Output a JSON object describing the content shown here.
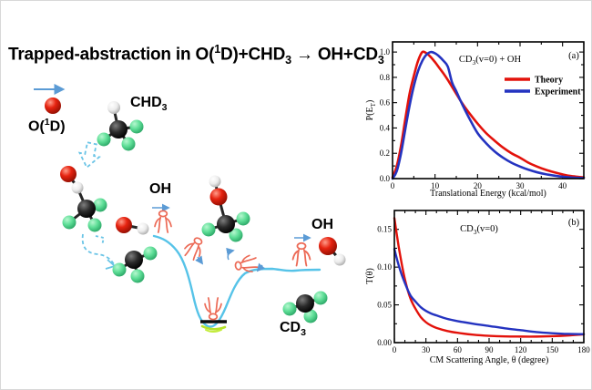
{
  "page": {
    "title_segments": [
      {
        "t": "Trapped-abstraction in O("
      },
      {
        "t": "1",
        "s": "sup"
      },
      {
        "t": "D)+CHD"
      },
      {
        "t": "3",
        "s": "sub"
      },
      {
        "t": " → OH+CD"
      },
      {
        "t": "3",
        "s": "sub"
      }
    ]
  },
  "diagram": {
    "labels": {
      "o1d": [
        {
          "t": "O("
        },
        {
          "t": "1",
          "s": "sup"
        },
        {
          "t": "D)"
        }
      ],
      "chd3": [
        {
          "t": "CHD"
        },
        {
          "t": "3",
          "s": "sub"
        }
      ],
      "oh_mid": "OH",
      "oh_right": "OH",
      "cd3": [
        {
          "t": "CD"
        },
        {
          "t": "3",
          "s": "sub"
        }
      ]
    },
    "colors": {
      "oxygen": "#e62310",
      "carbon": "#111111",
      "hydrogen": "#ededed",
      "deuterium": "#5ede97",
      "potential_curve": "#56c3e8",
      "dashed_arrow": "#6ac4e6",
      "small_arrow": "#5b9bd5",
      "skier_figure": "#ec6a56",
      "well_glow": "#b5e32a"
    }
  },
  "chart_data": [
    {
      "type": "line",
      "panel_label": "(a)",
      "title_segments": [
        {
          "t": "CD"
        },
        {
          "t": "3",
          "s": "sub"
        },
        {
          "t": "(v=0) + OH"
        }
      ],
      "xlabel": "Translational Energy (kcal/mol)",
      "ylabel_segments": [
        {
          "t": "P(E"
        },
        {
          "t": "T",
          "s": "sub"
        },
        {
          "t": ")"
        }
      ],
      "xlim": [
        0,
        45
      ],
      "ylim": [
        0,
        1.08
      ],
      "grid": false,
      "legend_position": "upper right",
      "xticks": {
        "major": [
          0,
          10,
          20,
          30,
          40
        ],
        "labels": [
          "0",
          "10",
          "20",
          "30",
          "40"
        ],
        "minor_step": 5
      },
      "yticks": {
        "major": [
          0,
          0.2,
          0.4,
          0.6,
          0.8,
          1.0
        ],
        "labels": [
          "0.0",
          "0.2",
          "0.4",
          "0.6",
          "0.8",
          "1.0"
        ],
        "minor_step": 0.1
      },
      "legend": [
        {
          "label": "Theory",
          "color": "#e3120b"
        },
        {
          "label": "Experiment",
          "color": "#2433c0"
        }
      ],
      "series": [
        {
          "name": "Theory",
          "color": "#e3120b",
          "x": [
            0,
            1,
            2,
            3,
            4,
            5,
            6,
            7,
            8,
            9,
            10,
            11,
            12,
            13,
            14,
            15,
            16,
            17,
            18,
            20,
            22,
            24,
            26,
            28,
            30,
            32,
            34,
            36,
            38,
            40,
            42,
            45
          ],
          "y": [
            0.01,
            0.1,
            0.26,
            0.47,
            0.67,
            0.81,
            0.93,
            1.0,
            0.99,
            0.96,
            0.92,
            0.875,
            0.83,
            0.78,
            0.725,
            0.67,
            0.615,
            0.565,
            0.52,
            0.435,
            0.36,
            0.3,
            0.245,
            0.2,
            0.165,
            0.125,
            0.095,
            0.07,
            0.05,
            0.033,
            0.02,
            0.009
          ],
          "peak_x": 7,
          "peak_y": 1.0
        },
        {
          "name": "Experiment",
          "color": "#2433c0",
          "x": [
            0,
            1,
            2,
            3,
            4,
            5,
            6,
            7,
            8,
            9,
            10,
            11,
            12,
            13,
            14,
            15,
            16,
            17,
            18,
            20,
            22,
            24,
            26,
            28,
            30,
            32,
            34,
            36,
            38,
            40,
            42,
            45
          ],
          "y": [
            0.0,
            0.06,
            0.2,
            0.39,
            0.575,
            0.73,
            0.85,
            0.93,
            0.98,
            1.0,
            0.99,
            0.965,
            0.93,
            0.885,
            0.76,
            0.69,
            0.615,
            0.545,
            0.48,
            0.36,
            0.28,
            0.215,
            0.165,
            0.125,
            0.095,
            0.07,
            0.05,
            0.035,
            0.024,
            0.015,
            0.009,
            0.004
          ],
          "peak_x": 9,
          "peak_y": 1.0
        }
      ],
      "curves_cross_at": {
        "x": 16,
        "y": 0.61
      }
    },
    {
      "type": "line",
      "panel_label": "(b)",
      "title_segments": [
        {
          "t": "CD"
        },
        {
          "t": "3",
          "s": "sub"
        },
        {
          "t": "(v=0)"
        }
      ],
      "xlabel": "CM Scattering Angle, θ (degree)",
      "ylabel_segments": [
        {
          "t": "T(θ)"
        }
      ],
      "xlim": [
        0,
        180
      ],
      "ylim": [
        0,
        0.175
      ],
      "grid": false,
      "legend_position": "none",
      "xticks": {
        "major": [
          0,
          30,
          60,
          90,
          120,
          150,
          180
        ],
        "labels": [
          "0",
          "30",
          "60",
          "90",
          "120",
          "150",
          "180"
        ],
        "minor_step": 10
      },
      "yticks": {
        "major": [
          0,
          0.05,
          0.1,
          0.15
        ],
        "labels": [
          "0.00",
          "0.05",
          "0.10",
          "0.15"
        ],
        "minor_step": 0.025
      },
      "legend": [],
      "series": [
        {
          "name": "Theory",
          "color": "#e3120b",
          "x": [
            0,
            2,
            4,
            6,
            8,
            10,
            13,
            16,
            20,
            25,
            30,
            35,
            40,
            50,
            60,
            75,
            90,
            105,
            120,
            135,
            150,
            165,
            180
          ],
          "y": [
            0.165,
            0.146,
            0.128,
            0.112,
            0.097,
            0.084,
            0.068,
            0.056,
            0.045,
            0.034,
            0.027,
            0.0225,
            0.0195,
            0.0155,
            0.013,
            0.0105,
            0.009,
            0.0082,
            0.008,
            0.008,
            0.0085,
            0.0095,
            0.011
          ]
        },
        {
          "name": "Experiment",
          "color": "#2433c0",
          "x": [
            0,
            2,
            4,
            6,
            8,
            10,
            13,
            16,
            20,
            25,
            30,
            35,
            40,
            50,
            60,
            75,
            90,
            105,
            120,
            135,
            150,
            165,
            180
          ],
          "y": [
            0.124,
            0.113,
            0.103,
            0.094,
            0.086,
            0.079,
            0.069,
            0.061,
            0.0545,
            0.047,
            0.042,
            0.0385,
            0.036,
            0.0315,
            0.0285,
            0.025,
            0.022,
            0.019,
            0.0165,
            0.014,
            0.0125,
            0.0115,
            0.0112
          ]
        }
      ]
    }
  ]
}
